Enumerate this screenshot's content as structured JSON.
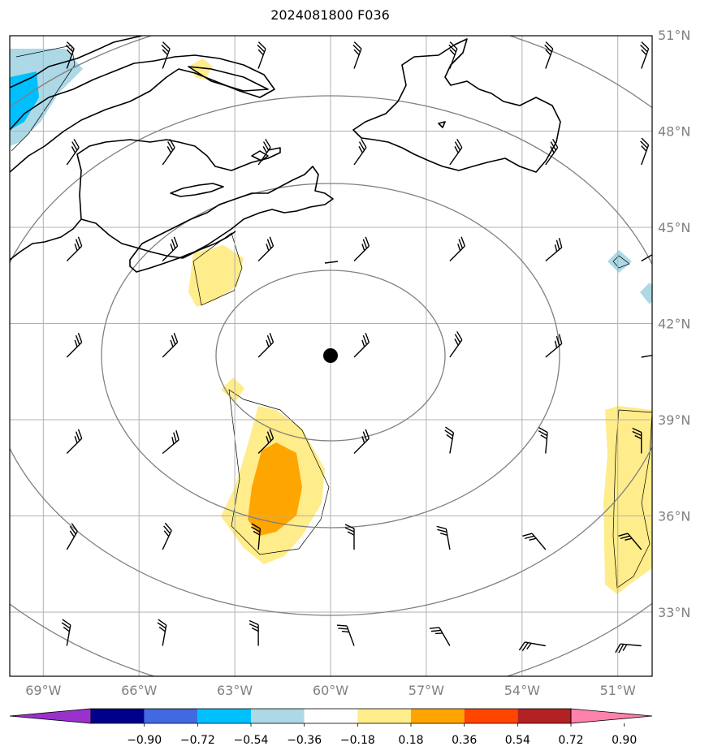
{
  "title": "2024081800 F036",
  "map": {
    "lat_ticks": [
      {
        "value": 51,
        "label": "51°N"
      },
      {
        "value": 48,
        "label": "48°N"
      },
      {
        "value": 45,
        "label": "45°N"
      },
      {
        "value": 42,
        "label": "42°N"
      },
      {
        "value": 39,
        "label": "39°N"
      },
      {
        "value": 36,
        "label": "36°N"
      },
      {
        "value": 33,
        "label": "33°N"
      }
    ],
    "lon_ticks": [
      {
        "value": -69,
        "label": "69°W"
      },
      {
        "value": -66,
        "label": "66°W"
      },
      {
        "value": -63,
        "label": "63°W"
      },
      {
        "value": -60,
        "label": "60°W"
      },
      {
        "value": -57,
        "label": "57°W"
      },
      {
        "value": -54,
        "label": "54°W"
      },
      {
        "value": -51,
        "label": "51°W"
      }
    ],
    "extent": {
      "lon_min": -70,
      "lon_max": -50,
      "lat_min": 31,
      "lat_max": 51
    },
    "center_marker": {
      "lon": -60,
      "lat": 41
    },
    "range_rings": 4,
    "colors": {
      "grid": "#b0b0b0",
      "rings": "#808080",
      "coast": "#000000"
    }
  },
  "colorbar": {
    "levels": [
      "−0.90",
      "−0.72",
      "−0.54",
      "−0.36",
      "−0.18",
      "0.18",
      "0.36",
      "0.54",
      "0.72",
      "0.90"
    ],
    "colors": [
      "#9932cc",
      "#00008b",
      "#4169e1",
      "#00bfff",
      "#add8e6",
      "#ffffff",
      "#ffec8b",
      "#ffa500",
      "#ff4500",
      "#b22222",
      "#ff82ab"
    ]
  },
  "barbs": {
    "rows": [
      {
        "lat": 50.0,
        "angles": [
          200,
          200,
          200,
          200,
          200,
          200,
          200
        ]
      },
      {
        "lat": 47.0,
        "angles": [
          215,
          215,
          215,
          215,
          215,
          215,
          200
        ]
      },
      {
        "lat": 44.0,
        "angles": [
          225,
          225,
          225,
          225,
          225,
          230,
          240
        ]
      },
      {
        "lat": 41.0,
        "angles": [
          225,
          225,
          225,
          225,
          215,
          230,
          260
        ]
      },
      {
        "lat": 38.0,
        "angles": [
          225,
          230,
          225,
          225,
          190,
          185,
          180
        ]
      },
      {
        "lat": 35.0,
        "angles": [
          210,
          205,
          185,
          180,
          170,
          140,
          140
        ]
      },
      {
        "lat": 32.0,
        "angles": [
          190,
          190,
          180,
          160,
          150,
          100,
          95
        ]
      }
    ],
    "lons": [
      -69,
      -66,
      -63,
      -60,
      -57,
      -54,
      -51
    ]
  }
}
